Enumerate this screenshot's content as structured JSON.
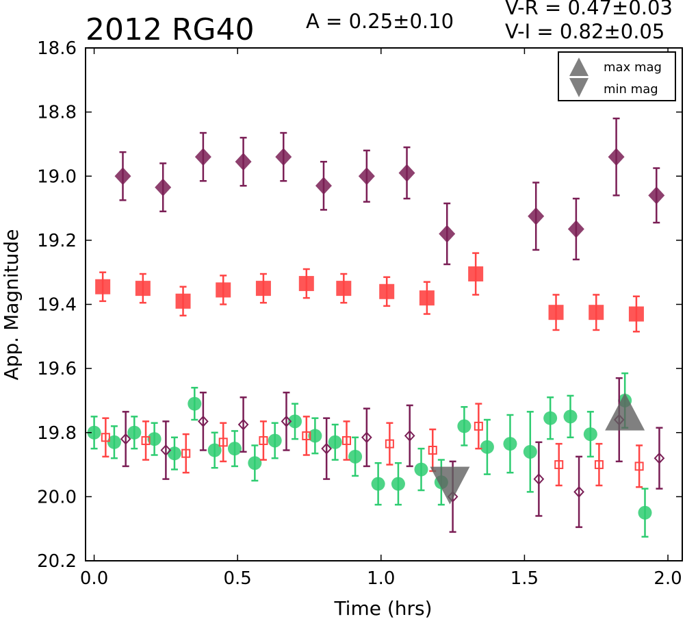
{
  "chart_data": {
    "type": "scatter",
    "title": "2012 RG40",
    "annotations": {
      "amplitude": "A  = 0.25±0.10",
      "color_vr": "V-R = 0.47±0.03",
      "color_vi": "V-I  = 0.82±0.05"
    },
    "xlabel": "Time (hrs)",
    "ylabel": "App. Magnitude",
    "xlim": [
      -0.03,
      2.05
    ],
    "ylim": [
      20.2,
      18.6
    ],
    "y_inverted": true,
    "grid": false,
    "xticks": [
      "0.0",
      "0.5",
      "1.0",
      "1.5",
      "2.0"
    ],
    "yticks": [
      "18.6",
      "18.8",
      "19.0",
      "19.2",
      "19.4",
      "19.6",
      "19.8",
      "20.0",
      "20.2"
    ],
    "legend": {
      "placement": "top-right",
      "entries": [
        {
          "label": "max mag",
          "marker": "triangle-up"
        },
        {
          "label": "min mag",
          "marker": "triangle-down"
        }
      ]
    },
    "series": [
      {
        "marker": "diamond-filled",
        "color": "#7a1e55",
        "points": [
          {
            "x": 0.1,
            "y": 19.0,
            "err": 0.075
          },
          {
            "x": 0.24,
            "y": 19.035,
            "err": 0.075
          },
          {
            "x": 0.38,
            "y": 18.94,
            "err": 0.075
          },
          {
            "x": 0.52,
            "y": 18.955,
            "err": 0.075
          },
          {
            "x": 0.66,
            "y": 18.94,
            "err": 0.075
          },
          {
            "x": 0.8,
            "y": 19.03,
            "err": 0.075
          },
          {
            "x": 0.95,
            "y": 19.0,
            "err": 0.08
          },
          {
            "x": 1.09,
            "y": 18.99,
            "err": 0.08
          },
          {
            "x": 1.23,
            "y": 19.18,
            "err": 0.095
          },
          {
            "x": 1.54,
            "y": 19.125,
            "err": 0.105
          },
          {
            "x": 1.68,
            "y": 19.165,
            "err": 0.095
          },
          {
            "x": 1.82,
            "y": 18.94,
            "err": 0.12
          },
          {
            "x": 1.96,
            "y": 19.06,
            "err": 0.085
          }
        ]
      },
      {
        "marker": "square-filled",
        "color": "#ff4444",
        "points": [
          {
            "x": 0.03,
            "y": 19.345,
            "err": 0.045
          },
          {
            "x": 0.17,
            "y": 19.35,
            "err": 0.045
          },
          {
            "x": 0.31,
            "y": 19.39,
            "err": 0.045
          },
          {
            "x": 0.45,
            "y": 19.355,
            "err": 0.045
          },
          {
            "x": 0.59,
            "y": 19.35,
            "err": 0.045
          },
          {
            "x": 0.74,
            "y": 19.335,
            "err": 0.045
          },
          {
            "x": 0.87,
            "y": 19.35,
            "err": 0.045
          },
          {
            "x": 1.02,
            "y": 19.36,
            "err": 0.045
          },
          {
            "x": 1.16,
            "y": 19.38,
            "err": 0.05
          },
          {
            "x": 1.33,
            "y": 19.305,
            "err": 0.065
          },
          {
            "x": 1.61,
            "y": 19.425,
            "err": 0.055
          },
          {
            "x": 1.75,
            "y": 19.425,
            "err": 0.055
          },
          {
            "x": 1.89,
            "y": 19.43,
            "err": 0.055
          }
        ]
      },
      {
        "marker": "circle-filled",
        "color": "#2ecc71",
        "points": [
          {
            "x": 0.0,
            "y": 19.8,
            "err": 0.05
          },
          {
            "x": 0.07,
            "y": 19.83,
            "err": 0.05
          },
          {
            "x": 0.14,
            "y": 19.8,
            "err": 0.05
          },
          {
            "x": 0.21,
            "y": 19.82,
            "err": 0.05
          },
          {
            "x": 0.28,
            "y": 19.865,
            "err": 0.05
          },
          {
            "x": 0.35,
            "y": 19.71,
            "err": 0.05
          },
          {
            "x": 0.42,
            "y": 19.855,
            "err": 0.055
          },
          {
            "x": 0.49,
            "y": 19.85,
            "err": 0.055
          },
          {
            "x": 0.56,
            "y": 19.895,
            "err": 0.055
          },
          {
            "x": 0.63,
            "y": 19.825,
            "err": 0.055
          },
          {
            "x": 0.7,
            "y": 19.765,
            "err": 0.055
          },
          {
            "x": 0.77,
            "y": 19.81,
            "err": 0.055
          },
          {
            "x": 0.84,
            "y": 19.83,
            "err": 0.055
          },
          {
            "x": 0.91,
            "y": 19.875,
            "err": 0.06
          },
          {
            "x": 0.99,
            "y": 19.96,
            "err": 0.065
          },
          {
            "x": 1.06,
            "y": 19.96,
            "err": 0.065
          },
          {
            "x": 1.14,
            "y": 19.915,
            "err": 0.065
          },
          {
            "x": 1.21,
            "y": 19.955,
            "err": 0.07
          },
          {
            "x": 1.29,
            "y": 19.78,
            "err": 0.06
          },
          {
            "x": 1.37,
            "y": 19.845,
            "err": 0.085
          },
          {
            "x": 1.45,
            "y": 19.835,
            "err": 0.09
          },
          {
            "x": 1.52,
            "y": 19.86,
            "err": 0.125
          },
          {
            "x": 1.59,
            "y": 19.755,
            "err": 0.065
          },
          {
            "x": 1.66,
            "y": 19.75,
            "err": 0.065
          },
          {
            "x": 1.73,
            "y": 19.805,
            "err": 0.07
          },
          {
            "x": 1.85,
            "y": 19.7,
            "err": 0.085
          },
          {
            "x": 1.92,
            "y": 20.05,
            "err": 0.075
          }
        ]
      },
      {
        "marker": "square-open",
        "color": "#ff4444",
        "points": [
          {
            "x": 0.04,
            "y": 19.815,
            "err": 0.06
          },
          {
            "x": 0.18,
            "y": 19.825,
            "err": 0.06
          },
          {
            "x": 0.32,
            "y": 19.865,
            "err": 0.06
          },
          {
            "x": 0.45,
            "y": 19.83,
            "err": 0.06
          },
          {
            "x": 0.59,
            "y": 19.825,
            "err": 0.06
          },
          {
            "x": 0.74,
            "y": 19.81,
            "err": 0.06
          },
          {
            "x": 0.88,
            "y": 19.825,
            "err": 0.06
          },
          {
            "x": 1.03,
            "y": 19.835,
            "err": 0.065
          },
          {
            "x": 1.18,
            "y": 19.855,
            "err": 0.065
          },
          {
            "x": 1.34,
            "y": 19.78,
            "err": 0.07
          },
          {
            "x": 1.62,
            "y": 19.9,
            "err": 0.065
          },
          {
            "x": 1.76,
            "y": 19.9,
            "err": 0.065
          },
          {
            "x": 1.9,
            "y": 19.905,
            "err": 0.065
          }
        ]
      },
      {
        "marker": "diamond-open",
        "color": "#7a1e55",
        "points": [
          {
            "x": 0.11,
            "y": 19.82,
            "err": 0.085
          },
          {
            "x": 0.25,
            "y": 19.855,
            "err": 0.09
          },
          {
            "x": 0.38,
            "y": 19.765,
            "err": 0.09
          },
          {
            "x": 0.52,
            "y": 19.775,
            "err": 0.085
          },
          {
            "x": 0.67,
            "y": 19.765,
            "err": 0.09
          },
          {
            "x": 0.81,
            "y": 19.85,
            "err": 0.095
          },
          {
            "x": 0.95,
            "y": 19.815,
            "err": 0.09
          },
          {
            "x": 1.1,
            "y": 19.81,
            "err": 0.095
          },
          {
            "x": 1.25,
            "y": 20.0,
            "err": 0.11
          },
          {
            "x": 1.55,
            "y": 19.945,
            "err": 0.115
          },
          {
            "x": 1.69,
            "y": 19.985,
            "err": 0.11
          },
          {
            "x": 1.83,
            "y": 19.76,
            "err": 0.13
          },
          {
            "x": 1.97,
            "y": 19.88,
            "err": 0.095
          }
        ]
      }
    ],
    "extrema": {
      "max_mag": {
        "x": 1.85,
        "y": 19.74
      },
      "min_mag": {
        "x": 1.24,
        "y": 19.96
      }
    }
  }
}
